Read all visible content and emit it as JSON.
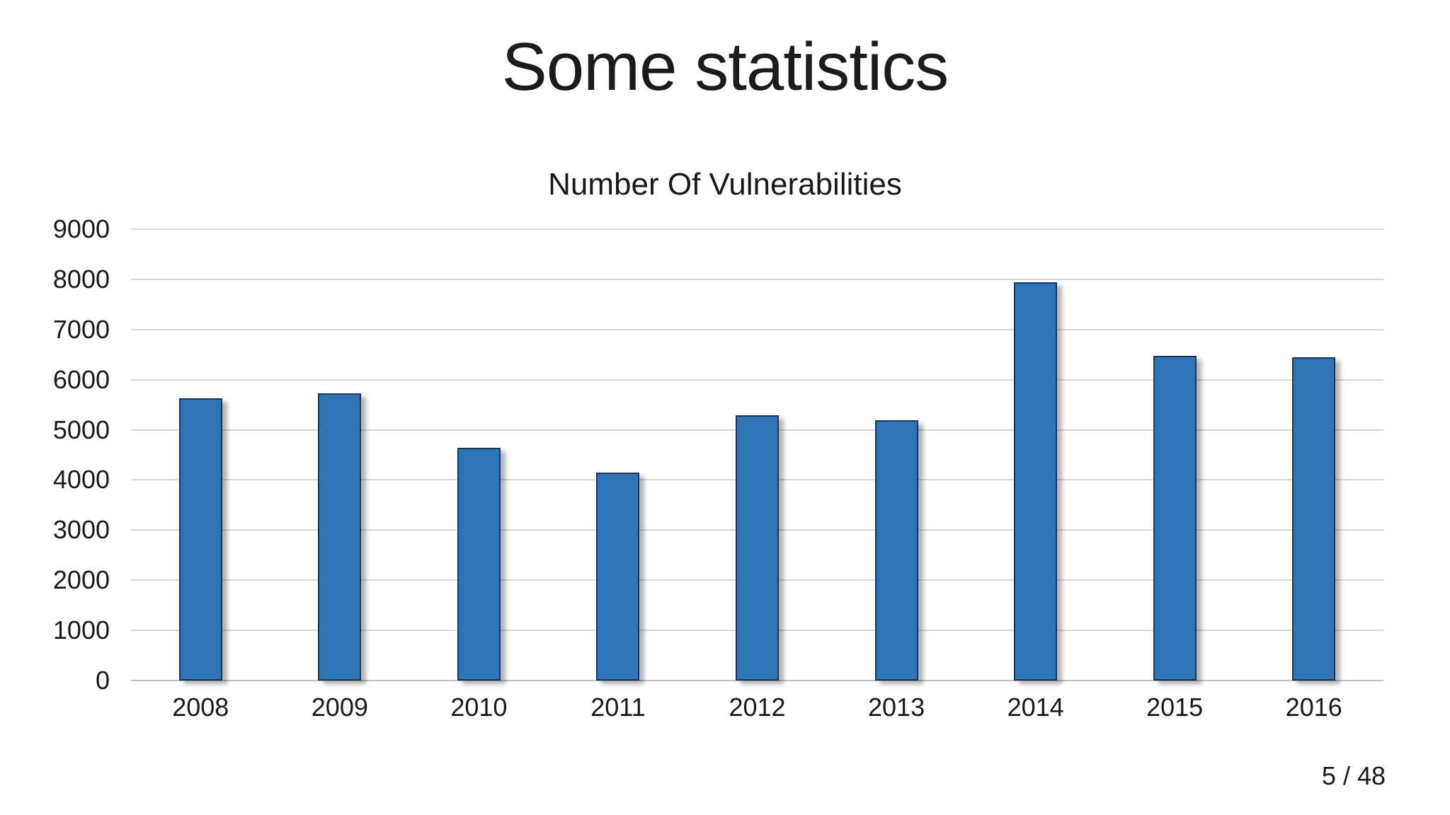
{
  "slide": {
    "title": "Some statistics",
    "page_indicator": "5 / 48"
  },
  "chart_data": {
    "type": "bar",
    "title": "Number Of Vulnerabilities",
    "categories": [
      "2008",
      "2009",
      "2010",
      "2011",
      "2012",
      "2013",
      "2014",
      "2015",
      "2016"
    ],
    "values": [
      5632,
      5732,
      4639,
      4150,
      5288,
      5186,
      7937,
      6480,
      6447
    ],
    "xlabel": "",
    "ylabel": "",
    "ylim": [
      0,
      9000
    ],
    "ytick_step": 1000,
    "grid": true,
    "legend": "none",
    "colors": {
      "bar_fill": "#2E75B6",
      "bar_border": "#17375E",
      "gridline": "#d9d9d9",
      "axis_line": "#c0c0c0",
      "text": "#1a1a1a"
    }
  }
}
